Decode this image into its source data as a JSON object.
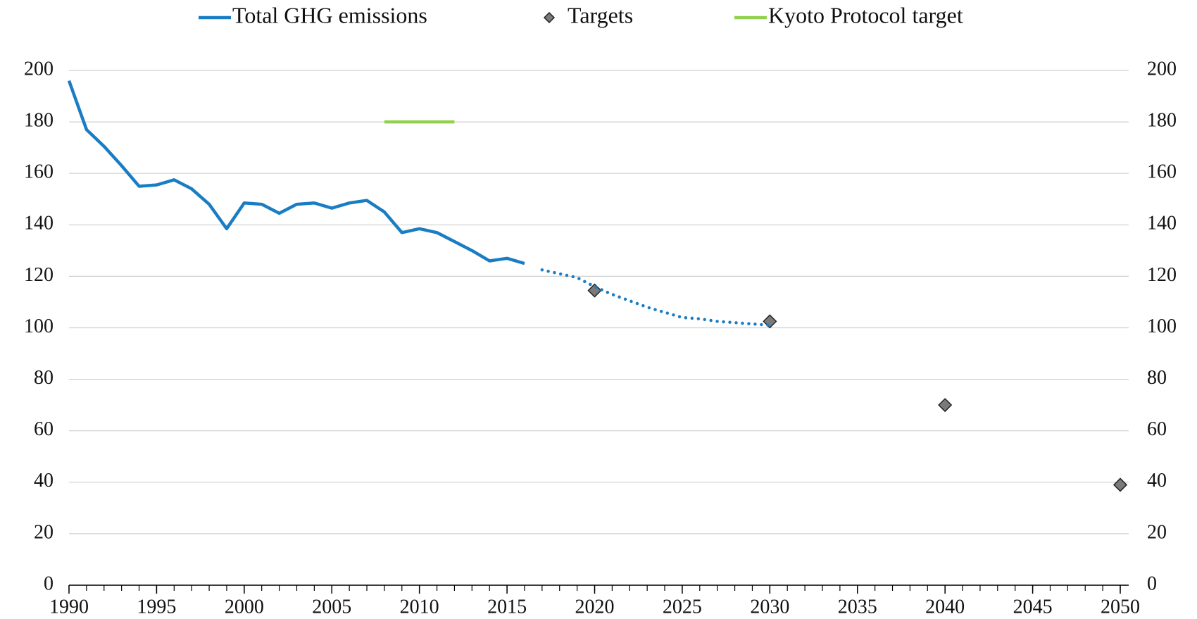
{
  "chart_data": {
    "type": "line",
    "xlim": [
      1990,
      2050
    ],
    "xticks": [
      1990,
      1995,
      2000,
      2005,
      2010,
      2015,
      2020,
      2025,
      2030,
      2035,
      2040,
      2045,
      2050
    ],
    "ylim": [
      0,
      200
    ],
    "yticks": [
      0,
      20,
      40,
      60,
      80,
      100,
      120,
      140,
      160,
      180,
      200
    ],
    "y2lim": [
      0,
      200
    ],
    "y2ticks": [
      0,
      20,
      40,
      60,
      80,
      100,
      120,
      140,
      160,
      180,
      200
    ],
    "grid": true,
    "legend": "top",
    "series": [
      {
        "name": "Total GHG emissions",
        "color": "#1a7dc4",
        "kind": "line",
        "x": [
          1990,
          1991,
          1992,
          1993,
          1994,
          1995,
          1996,
          1997,
          1998,
          1999,
          2000,
          2001,
          2002,
          2003,
          2004,
          2005,
          2006,
          2007,
          2008,
          2009,
          2010,
          2011,
          2012,
          2013,
          2014,
          2015,
          2016
        ],
        "values": [
          196,
          177,
          170.5,
          163,
          155,
          155.5,
          157.5,
          154,
          148,
          138.5,
          148.5,
          148,
          144.5,
          148,
          148.5,
          146.5,
          148.5,
          149.5,
          145,
          137,
          138.5,
          137,
          133.5,
          130,
          126,
          127,
          125
        ]
      },
      {
        "name": "Targets",
        "color": "#7a7a7a",
        "kind": "marker",
        "x": [
          2020,
          2030,
          2040,
          2050
        ],
        "values": [
          114.5,
          102.5,
          70,
          39
        ]
      },
      {
        "name": "Kyoto Protocol target",
        "color": "#92d050",
        "kind": "line",
        "x": [
          2008,
          2012
        ],
        "values": [
          180,
          180
        ]
      },
      {
        "color": "#1a7dc4",
        "kind": "dotted",
        "legend": false,
        "x": [
          2017,
          2018,
          2019,
          2020,
          2021,
          2022,
          2023,
          2024,
          2025,
          2026,
          2027,
          2028,
          2029,
          2030
        ],
        "values": [
          122.5,
          121,
          119.5,
          116,
          113,
          110.5,
          108,
          106,
          104,
          103.5,
          102.5,
          102,
          101.5,
          101
        ]
      }
    ]
  }
}
